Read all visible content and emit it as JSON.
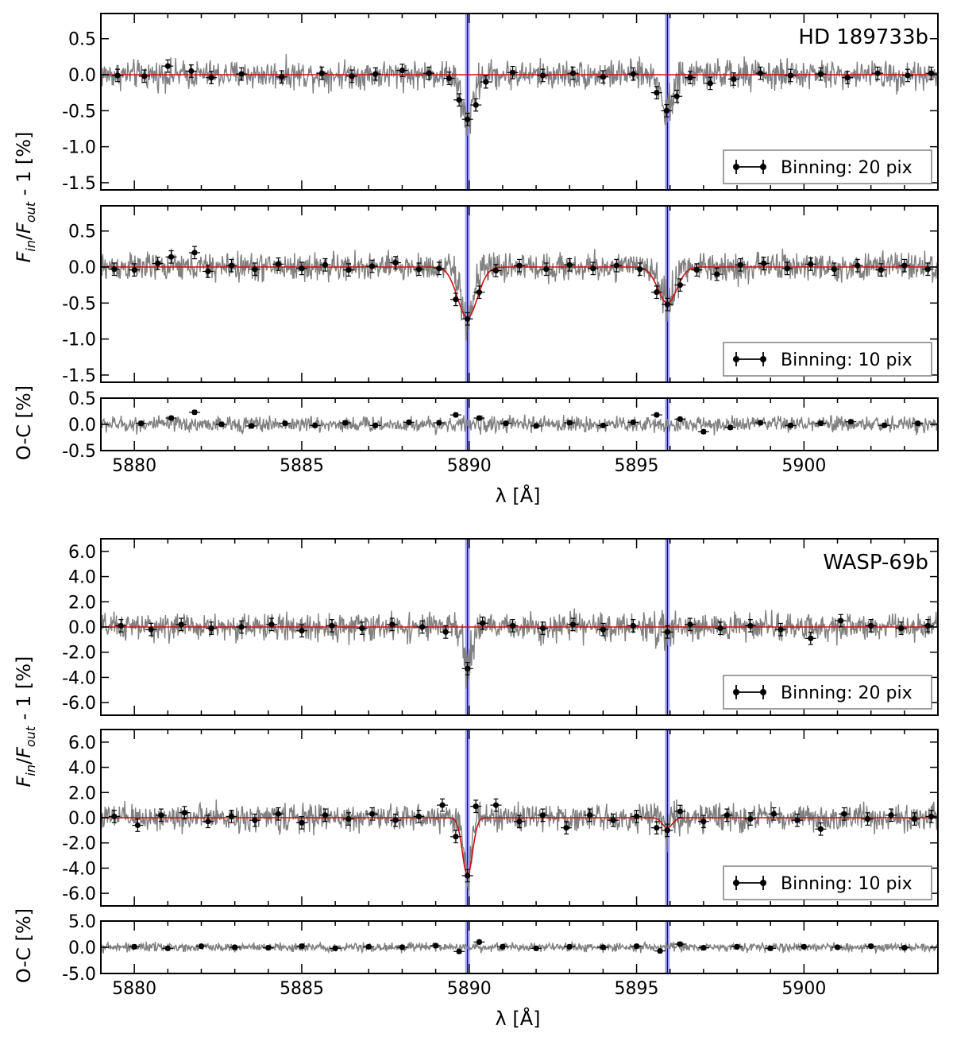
{
  "chart_data": [
    {
      "id": "hd-top",
      "type": "line",
      "planet_label": "HD 189733b",
      "ylabel": "F_in/F_out - 1 [%]",
      "xlim": [
        5879,
        5904
      ],
      "ylim": [
        -1.6,
        0.85
      ],
      "yticks": [
        "0.5",
        "0.0",
        "-0.5",
        "-1.0",
        "-1.5"
      ],
      "ytick_values": [
        0.5,
        0.0,
        -0.5,
        -1.0,
        -1.5
      ],
      "legend": "Binning: 20 pix",
      "legend_position": "bottom-right",
      "noise_amplitude": 0.13,
      "lines": [
        {
          "center": 5889.95,
          "depth": 0.65,
          "width": 0.18
        },
        {
          "center": 5895.92,
          "depth": 0.45,
          "width": 0.17
        }
      ],
      "model": "flat",
      "binned": [
        {
          "x": 5879.5,
          "y": -0.01
        },
        {
          "x": 5880.3,
          "y": -0.02
        },
        {
          "x": 5881.0,
          "y": 0.12
        },
        {
          "x": 5881.7,
          "y": 0.05
        },
        {
          "x": 5882.3,
          "y": -0.04
        },
        {
          "x": 5883.2,
          "y": 0.01
        },
        {
          "x": 5884.4,
          "y": -0.03
        },
        {
          "x": 5885.6,
          "y": 0.02
        },
        {
          "x": 5886.5,
          "y": -0.02
        },
        {
          "x": 5887.2,
          "y": 0.01
        },
        {
          "x": 5888.0,
          "y": 0.06
        },
        {
          "x": 5888.8,
          "y": 0.02
        },
        {
          "x": 5889.4,
          "y": -0.05
        },
        {
          "x": 5889.7,
          "y": -0.35
        },
        {
          "x": 5889.95,
          "y": -0.62
        },
        {
          "x": 5890.2,
          "y": -0.42
        },
        {
          "x": 5890.5,
          "y": -0.1
        },
        {
          "x": 5891.3,
          "y": 0.03
        },
        {
          "x": 5892.2,
          "y": -0.01
        },
        {
          "x": 5893.1,
          "y": 0.02
        },
        {
          "x": 5894.0,
          "y": -0.03
        },
        {
          "x": 5894.9,
          "y": 0.01
        },
        {
          "x": 5895.6,
          "y": -0.25
        },
        {
          "x": 5895.9,
          "y": -0.5
        },
        {
          "x": 5896.2,
          "y": -0.3
        },
        {
          "x": 5896.6,
          "y": -0.04
        },
        {
          "x": 5897.2,
          "y": -0.12
        },
        {
          "x": 5897.9,
          "y": -0.06
        },
        {
          "x": 5898.7,
          "y": 0.02
        },
        {
          "x": 5899.6,
          "y": -0.01
        },
        {
          "x": 5900.5,
          "y": 0.01
        },
        {
          "x": 5901.3,
          "y": -0.04
        },
        {
          "x": 5902.2,
          "y": 0.02
        },
        {
          "x": 5903.1,
          "y": -0.01
        },
        {
          "x": 5903.8,
          "y": 0.02
        }
      ]
    },
    {
      "id": "hd-mid",
      "type": "line",
      "planet_label": "",
      "xlim": [
        5879,
        5904
      ],
      "ylim": [
        -1.6,
        0.85
      ],
      "yticks": [
        "0.5",
        "0.0",
        "-0.5",
        "-1.0",
        "-1.5"
      ],
      "ytick_values": [
        0.5,
        0.0,
        -0.5,
        -1.0,
        -1.5
      ],
      "legend": "Binning: 10 pix",
      "legend_position": "bottom-right",
      "noise_amplitude": 0.13,
      "lines": [
        {
          "center": 5889.95,
          "depth": 0.7,
          "width": 0.2
        },
        {
          "center": 5895.92,
          "depth": 0.5,
          "width": 0.19
        }
      ],
      "model": "gaussian",
      "binned": [
        {
          "x": 5879.4,
          "y": -0.03
        },
        {
          "x": 5880.0,
          "y": -0.04
        },
        {
          "x": 5880.7,
          "y": 0.05
        },
        {
          "x": 5881.1,
          "y": 0.14
        },
        {
          "x": 5881.8,
          "y": 0.2
        },
        {
          "x": 5882.2,
          "y": -0.06
        },
        {
          "x": 5882.9,
          "y": 0.02
        },
        {
          "x": 5883.6,
          "y": -0.03
        },
        {
          "x": 5884.3,
          "y": 0.04
        },
        {
          "x": 5885.0,
          "y": -0.02
        },
        {
          "x": 5885.7,
          "y": 0.03
        },
        {
          "x": 5886.4,
          "y": -0.04
        },
        {
          "x": 5887.1,
          "y": 0.01
        },
        {
          "x": 5887.8,
          "y": 0.06
        },
        {
          "x": 5888.5,
          "y": -0.03
        },
        {
          "x": 5889.1,
          "y": -0.02
        },
        {
          "x": 5889.6,
          "y": -0.45
        },
        {
          "x": 5889.95,
          "y": -0.72
        },
        {
          "x": 5890.3,
          "y": -0.35
        },
        {
          "x": 5890.8,
          "y": -0.05
        },
        {
          "x": 5891.5,
          "y": 0.02
        },
        {
          "x": 5892.3,
          "y": -0.03
        },
        {
          "x": 5893.0,
          "y": 0.03
        },
        {
          "x": 5893.7,
          "y": -0.02
        },
        {
          "x": 5894.4,
          "y": 0.02
        },
        {
          "x": 5895.1,
          "y": -0.03
        },
        {
          "x": 5895.6,
          "y": -0.35
        },
        {
          "x": 5895.92,
          "y": -0.52
        },
        {
          "x": 5896.3,
          "y": -0.25
        },
        {
          "x": 5896.8,
          "y": -0.04
        },
        {
          "x": 5897.4,
          "y": -0.1
        },
        {
          "x": 5898.1,
          "y": 0.03
        },
        {
          "x": 5898.8,
          "y": 0.05
        },
        {
          "x": 5899.5,
          "y": -0.02
        },
        {
          "x": 5900.2,
          "y": 0.04
        },
        {
          "x": 5900.9,
          "y": -0.03
        },
        {
          "x": 5901.6,
          "y": 0.02
        },
        {
          "x": 5902.3,
          "y": -0.04
        },
        {
          "x": 5903.0,
          "y": 0.02
        },
        {
          "x": 5903.7,
          "y": -0.03
        }
      ]
    },
    {
      "id": "hd-res",
      "type": "line",
      "planet_label": "",
      "ylabel": "O-C [%]",
      "xlim": [
        5879,
        5904
      ],
      "ylim": [
        -0.5,
        0.5
      ],
      "yticks": [
        "0.5",
        "0.0",
        "-0.5"
      ],
      "ytick_values": [
        0.5,
        0.0,
        -0.5
      ],
      "noise_amplitude": 0.1,
      "lines": [],
      "model": "none",
      "binned": [
        {
          "x": 5880.2,
          "y": 0.02
        },
        {
          "x": 5881.1,
          "y": 0.12
        },
        {
          "x": 5881.8,
          "y": 0.23
        },
        {
          "x": 5882.6,
          "y": 0.0
        },
        {
          "x": 5883.5,
          "y": -0.03
        },
        {
          "x": 5884.5,
          "y": 0.02
        },
        {
          "x": 5885.4,
          "y": -0.02
        },
        {
          "x": 5886.3,
          "y": 0.03
        },
        {
          "x": 5887.2,
          "y": -0.02
        },
        {
          "x": 5888.2,
          "y": 0.04
        },
        {
          "x": 5889.1,
          "y": 0.03
        },
        {
          "x": 5889.6,
          "y": 0.18
        },
        {
          "x": 5890.3,
          "y": 0.12
        },
        {
          "x": 5891.1,
          "y": 0.02
        },
        {
          "x": 5892.0,
          "y": -0.03
        },
        {
          "x": 5893.0,
          "y": 0.03
        },
        {
          "x": 5894.0,
          "y": -0.02
        },
        {
          "x": 5894.9,
          "y": 0.04
        },
        {
          "x": 5895.6,
          "y": 0.18
        },
        {
          "x": 5896.3,
          "y": 0.1
        },
        {
          "x": 5897.0,
          "y": -0.14
        },
        {
          "x": 5897.8,
          "y": -0.06
        },
        {
          "x": 5898.7,
          "y": 0.03
        },
        {
          "x": 5899.6,
          "y": -0.02
        },
        {
          "x": 5900.5,
          "y": 0.02
        },
        {
          "x": 5901.4,
          "y": 0.05
        },
        {
          "x": 5902.4,
          "y": -0.02
        },
        {
          "x": 5903.4,
          "y": 0.02
        }
      ]
    },
    {
      "id": "wasp-top",
      "type": "line",
      "planet_label": "WASP-69b",
      "ylabel": "F_in/F_out - 1 [%]",
      "xlim": [
        5879,
        5904
      ],
      "ylim": [
        -7.0,
        7.0
      ],
      "yticks": [
        "6.0",
        "4.0",
        "2.0",
        "0.0",
        "-2.0",
        "-4.0",
        "-6.0"
      ],
      "ytick_values": [
        6,
        4,
        2,
        0,
        -2,
        -4,
        -6
      ],
      "legend": "Binning: 20 pix",
      "legend_position": "bottom-right",
      "noise_amplitude": 0.7,
      "lines": [
        {
          "center": 5889.95,
          "depth": 3.3,
          "width": 0.12
        },
        {
          "center": 5895.92,
          "depth": 0.6,
          "width": 0.1
        }
      ],
      "model": "flat",
      "binned": [
        {
          "x": 5879.6,
          "y": 0.1
        },
        {
          "x": 5880.5,
          "y": -0.2
        },
        {
          "x": 5881.4,
          "y": 0.2
        },
        {
          "x": 5882.3,
          "y": -0.1
        },
        {
          "x": 5883.2,
          "y": 0.0
        },
        {
          "x": 5884.1,
          "y": 0.2
        },
        {
          "x": 5885.0,
          "y": -0.3
        },
        {
          "x": 5885.9,
          "y": 0.1
        },
        {
          "x": 5886.8,
          "y": -0.1
        },
        {
          "x": 5887.7,
          "y": 0.2
        },
        {
          "x": 5888.6,
          "y": 0.0
        },
        {
          "x": 5889.3,
          "y": -0.4
        },
        {
          "x": 5889.95,
          "y": -3.3
        },
        {
          "x": 5890.4,
          "y": 0.3
        },
        {
          "x": 5891.3,
          "y": 0.1
        },
        {
          "x": 5892.2,
          "y": -0.1
        },
        {
          "x": 5893.1,
          "y": 0.2
        },
        {
          "x": 5894.0,
          "y": -0.2
        },
        {
          "x": 5894.9,
          "y": 0.1
        },
        {
          "x": 5895.92,
          "y": -0.4
        },
        {
          "x": 5896.6,
          "y": 0.2
        },
        {
          "x": 5897.5,
          "y": -0.1
        },
        {
          "x": 5898.4,
          "y": 0.1
        },
        {
          "x": 5899.3,
          "y": -0.2
        },
        {
          "x": 5900.2,
          "y": -0.9
        },
        {
          "x": 5901.1,
          "y": 0.5
        },
        {
          "x": 5902.0,
          "y": 0.1
        },
        {
          "x": 5902.9,
          "y": -0.1
        },
        {
          "x": 5903.7,
          "y": 0.1
        }
      ]
    },
    {
      "id": "wasp-mid",
      "type": "line",
      "planet_label": "",
      "xlim": [
        5879,
        5904
      ],
      "ylim": [
        -7.0,
        7.0
      ],
      "yticks": [
        "6.0",
        "4.0",
        "2.0",
        "0.0",
        "-2.0",
        "-4.0",
        "-6.0"
      ],
      "ytick_values": [
        6,
        4,
        2,
        0,
        -2,
        -4,
        -6
      ],
      "legend": "Binning: 10 pix",
      "legend_position": "bottom-right",
      "noise_amplitude": 0.7,
      "lines": [
        {
          "center": 5889.95,
          "depth": 4.6,
          "width": 0.1
        },
        {
          "center": 5895.92,
          "depth": 0.8,
          "width": 0.1
        }
      ],
      "model": "gaussian",
      "binned": [
        {
          "x": 5879.4,
          "y": 0.1
        },
        {
          "x": 5880.1,
          "y": -0.6
        },
        {
          "x": 5880.8,
          "y": 0.2
        },
        {
          "x": 5881.5,
          "y": 0.4
        },
        {
          "x": 5882.2,
          "y": -0.3
        },
        {
          "x": 5882.9,
          "y": 0.1
        },
        {
          "x": 5883.6,
          "y": -0.2
        },
        {
          "x": 5884.3,
          "y": 0.3
        },
        {
          "x": 5885.0,
          "y": -0.4
        },
        {
          "x": 5885.7,
          "y": 0.2
        },
        {
          "x": 5886.4,
          "y": -0.1
        },
        {
          "x": 5887.1,
          "y": 0.3
        },
        {
          "x": 5887.8,
          "y": -0.2
        },
        {
          "x": 5888.5,
          "y": 0.1
        },
        {
          "x": 5889.2,
          "y": 1.0
        },
        {
          "x": 5889.6,
          "y": -1.5
        },
        {
          "x": 5889.95,
          "y": -4.6
        },
        {
          "x": 5890.2,
          "y": 0.9
        },
        {
          "x": 5890.8,
          "y": 1.0
        },
        {
          "x": 5891.5,
          "y": -0.3
        },
        {
          "x": 5892.2,
          "y": 0.2
        },
        {
          "x": 5892.9,
          "y": -0.8
        },
        {
          "x": 5893.6,
          "y": 0.2
        },
        {
          "x": 5894.3,
          "y": -0.2
        },
        {
          "x": 5895.0,
          "y": 0.1
        },
        {
          "x": 5895.6,
          "y": -0.8
        },
        {
          "x": 5895.92,
          "y": -1.0
        },
        {
          "x": 5896.3,
          "y": 0.5
        },
        {
          "x": 5897.0,
          "y": -0.3
        },
        {
          "x": 5897.7,
          "y": 0.2
        },
        {
          "x": 5898.4,
          "y": -0.1
        },
        {
          "x": 5899.1,
          "y": 0.3
        },
        {
          "x": 5899.8,
          "y": -0.2
        },
        {
          "x": 5900.5,
          "y": -0.9
        },
        {
          "x": 5901.2,
          "y": 0.3
        },
        {
          "x": 5901.9,
          "y": -0.1
        },
        {
          "x": 5902.6,
          "y": 0.2
        },
        {
          "x": 5903.3,
          "y": -0.1
        },
        {
          "x": 5903.8,
          "y": 0.1
        }
      ]
    },
    {
      "id": "wasp-res",
      "type": "line",
      "planet_label": "",
      "ylabel": "O-C [%]",
      "xlabel": "λ [Å]",
      "xlim": [
        5879,
        5904
      ],
      "ylim": [
        -5.0,
        5.0
      ],
      "yticks": [
        "5.0",
        "0.0",
        "-5.0"
      ],
      "ytick_values": [
        5,
        0,
        -5
      ],
      "noise_amplitude": 0.55,
      "lines": [],
      "model": "none",
      "binned": [
        {
          "x": 5880.0,
          "y": 0.1
        },
        {
          "x": 5881.0,
          "y": -0.2
        },
        {
          "x": 5882.0,
          "y": 0.2
        },
        {
          "x": 5883.0,
          "y": 0.0
        },
        {
          "x": 5884.0,
          "y": -0.1
        },
        {
          "x": 5885.0,
          "y": 0.2
        },
        {
          "x": 5886.0,
          "y": -0.2
        },
        {
          "x": 5887.0,
          "y": 0.1
        },
        {
          "x": 5888.0,
          "y": 0.0
        },
        {
          "x": 5889.0,
          "y": 0.3
        },
        {
          "x": 5889.7,
          "y": -0.8
        },
        {
          "x": 5890.3,
          "y": 1.0
        },
        {
          "x": 5891.0,
          "y": 0.1
        },
        {
          "x": 5892.0,
          "y": -0.2
        },
        {
          "x": 5893.0,
          "y": 0.1
        },
        {
          "x": 5894.0,
          "y": 0.0
        },
        {
          "x": 5895.0,
          "y": 0.2
        },
        {
          "x": 5895.7,
          "y": -0.7
        },
        {
          "x": 5896.3,
          "y": 0.6
        },
        {
          "x": 5897.0,
          "y": -0.1
        },
        {
          "x": 5898.0,
          "y": 0.1
        },
        {
          "x": 5899.0,
          "y": -0.2
        },
        {
          "x": 5900.0,
          "y": 0.1
        },
        {
          "x": 5901.0,
          "y": 0.0
        },
        {
          "x": 5902.0,
          "y": 0.2
        },
        {
          "x": 5903.0,
          "y": -0.1
        }
      ]
    }
  ],
  "shared": {
    "xticks": [
      "5880",
      "5885",
      "5890",
      "5895",
      "5900"
    ],
    "xtick_values": [
      5880,
      5885,
      5890,
      5895,
      5900
    ],
    "xlabel": "λ [Å]",
    "ylabel_main": "F_in/F_out - 1 [%]",
    "ylabel_res": "O-C [%]",
    "colors": {
      "noise": "#808080",
      "model": "#d01010",
      "binned": "#000000",
      "sodium_lines": "#8080ff"
    }
  }
}
